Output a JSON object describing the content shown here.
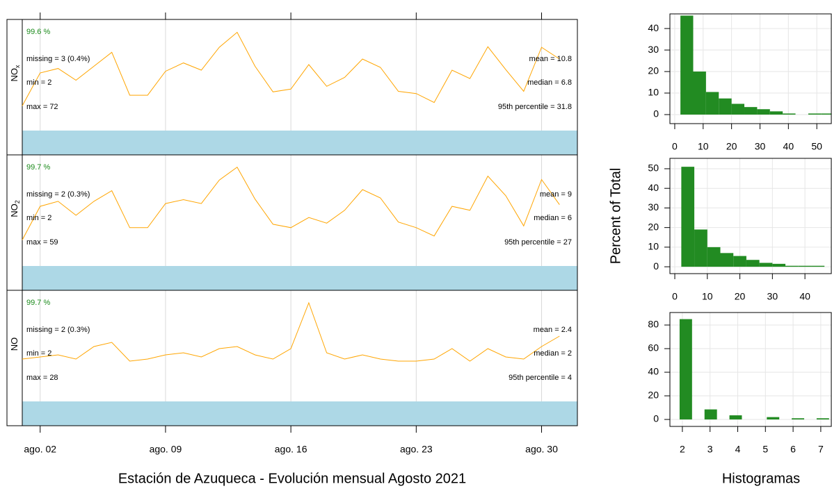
{
  "chart_data": [
    {
      "type": "line",
      "ylabel": "NO",
      "ylabel_sub": "x",
      "color": "#FFA500",
      "x": [
        1,
        2,
        3,
        4,
        5,
        6,
        7,
        8,
        9,
        10,
        11,
        12,
        13,
        14,
        15,
        16,
        17,
        18,
        19,
        20,
        21,
        22,
        23,
        24,
        25,
        26,
        27,
        28,
        29,
        30,
        31
      ],
      "values": [
        4.4,
        10.3,
        11.1,
        9.0,
        11.5,
        14.0,
        6.3,
        6.3,
        10.6,
        12.1,
        10.8,
        14.9,
        17.6,
        11.5,
        6.9,
        7.4,
        11.8,
        7.9,
        9.5,
        12.8,
        11.3,
        7.0,
        6.6,
        5.0,
        10.8,
        9.3,
        15.0,
        10.9,
        7.0,
        14.9,
        12.8
      ],
      "xlim": [
        1,
        32
      ],
      "ylim": [
        -4.4,
        19.9
      ],
      "stats": {
        "percent": "99.6 %",
        "missing": "missing = 3 (0.4%)",
        "min": "min = 2",
        "max": "max = 72",
        "mean": "mean = 10.8",
        "median": "median = 6.8",
        "p95": "95th percentile = 31.8"
      }
    },
    {
      "type": "line",
      "ylabel": "NO",
      "ylabel_sub": "2",
      "color": "#FFA500",
      "x": [
        1,
        2,
        3,
        4,
        5,
        6,
        7,
        8,
        9,
        10,
        11,
        12,
        13,
        14,
        15,
        16,
        17,
        18,
        19,
        20,
        21,
        22,
        23,
        24,
        25,
        26,
        27,
        28,
        29,
        30,
        31
      ],
      "values": [
        4.6,
        10.6,
        11.5,
        9.0,
        11.5,
        13.4,
        6.8,
        6.8,
        11.1,
        11.8,
        11.1,
        15.3,
        17.6,
        11.9,
        7.4,
        6.8,
        8.6,
        7.6,
        9.9,
        13.6,
        12.1,
        7.8,
        6.8,
        5.3,
        10.6,
        9.9,
        16.0,
        12.5,
        7.1,
        15.4,
        10.9
      ],
      "xlim": [
        1,
        32
      ],
      "ylim": [
        -4.4,
        19.8
      ],
      "stats": {
        "percent": "99.7 %",
        "missing": "missing = 2 (0.3%)",
        "min": "min = 2",
        "max": "max = 59",
        "mean": "mean = 9",
        "median": "median = 6",
        "p95": "95th percentile = 27"
      }
    },
    {
      "type": "line",
      "ylabel": "NO",
      "color": "#FFA500",
      "x": [
        1,
        2,
        3,
        4,
        5,
        6,
        7,
        8,
        9,
        10,
        11,
        12,
        13,
        14,
        15,
        16,
        17,
        18,
        19,
        20,
        21,
        22,
        23,
        24,
        25,
        26,
        27,
        28,
        29,
        30,
        31
      ],
      "values": [
        2.0,
        2.1,
        2.2,
        2.0,
        2.6,
        2.8,
        1.9,
        2.0,
        2.2,
        2.3,
        2.1,
        2.5,
        2.6,
        2.2,
        2.0,
        2.5,
        4.7,
        2.3,
        2.0,
        2.2,
        2.0,
        1.9,
        1.9,
        2.0,
        2.5,
        1.9,
        2.5,
        2.1,
        2.0,
        2.6,
        3.1
      ],
      "xlim": [
        1,
        32
      ],
      "ylim": [
        -1.2,
        5.3
      ],
      "xticks": [
        {
          "value": 2,
          "label": "ago. 02"
        },
        {
          "value": 9,
          "label": "ago. 09"
        },
        {
          "value": 16,
          "label": "ago. 16"
        },
        {
          "value": 23,
          "label": "ago. 23"
        },
        {
          "value": 30,
          "label": "ago. 30"
        }
      ],
      "xlabel": "Estación de Azuqueca - Evolución mensual Agosto 2021",
      "stats": {
        "percent": "99.7 %",
        "missing": "missing = 2 (0.3%)",
        "min": "min = 2",
        "max": "max = 28",
        "mean": "mean = 2.4",
        "median": "median = 2",
        "p95": "95th percentile = 4"
      }
    },
    {
      "type": "histogram",
      "color": "#228B22",
      "grid": true,
      "bins": [
        2,
        6.5,
        11,
        15.5,
        20,
        24.5,
        29,
        33.5,
        38,
        42.5,
        47,
        51.5,
        56
      ],
      "values": [
        46,
        20,
        10.5,
        7.5,
        5,
        3.5,
        2.5,
        1.5,
        0.5,
        0,
        0.5,
        0.5
      ],
      "xlim": [
        -1.7,
        55.1
      ],
      "ylim": [
        -4.2,
        46.8
      ],
      "xticks": [
        0,
        10,
        20,
        30,
        40,
        50
      ],
      "yticks": [
        0,
        10,
        20,
        30,
        40
      ]
    },
    {
      "type": "histogram",
      "color": "#228B22",
      "grid": true,
      "ylabel": "Percent of Total",
      "bins": [
        2,
        6,
        10,
        14,
        18,
        22,
        26,
        30,
        34,
        38,
        42,
        46
      ],
      "values": [
        51,
        19,
        10,
        7,
        5.5,
        3.5,
        2,
        1.5,
        0.5,
        0.5,
        0.5
      ],
      "xlim": [
        -1.5,
        48.1
      ],
      "ylim": [
        -3.5,
        55.3
      ],
      "xticks": [
        0,
        10,
        20,
        30,
        40
      ],
      "yticks": [
        0,
        10,
        20,
        30,
        40,
        50
      ]
    },
    {
      "type": "histogram",
      "color": "#228B22",
      "grid": true,
      "xlabel": "Histogramas",
      "bins": [
        1.9,
        2.35,
        2.8,
        3.25,
        3.7,
        4.15,
        4.6,
        5.05,
        5.5,
        5.95,
        6.4,
        6.85,
        7.3
      ],
      "values": [
        85,
        0,
        8.5,
        0,
        3.5,
        0,
        0,
        2,
        0,
        1,
        0,
        1
      ],
      "xlim": [
        1.55,
        7.38
      ],
      "ylim": [
        -5.9,
        90.6
      ],
      "xticks": [
        2,
        3,
        4,
        5,
        6,
        7
      ],
      "yticks": [
        0,
        20,
        40,
        60,
        80
      ]
    }
  ]
}
